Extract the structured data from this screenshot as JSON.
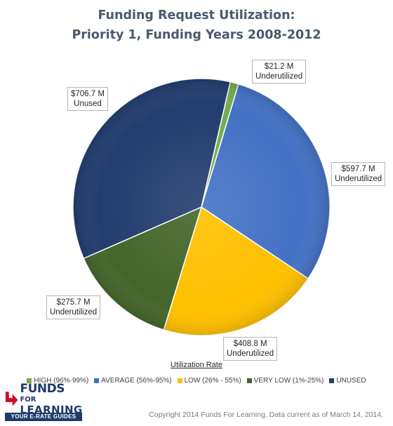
{
  "chart_data": {
    "type": "pie",
    "title_lines": [
      "Funding Request Utilization:",
      "Priority  1, Funding Years 2008-2012"
    ],
    "slices": [
      {
        "name": "HIGH (96%-99%)",
        "value": 21.2,
        "label_value": "$21.2 M",
        "label_text": "Underutilized",
        "color": "#72ac4d"
      },
      {
        "name": "AVERAGE (56%-95%)",
        "value": 597.7,
        "label_value": "$597.7 M",
        "label_text": "Underutilized",
        "color": "#4472c4"
      },
      {
        "name": "LOW (26% - 55%)",
        "value": 408.8,
        "label_value": "$408.8 M",
        "label_text": "Underutilized",
        "color": "#ffc000"
      },
      {
        "name": "VERY LOW (1%-25%)",
        "value": 275.7,
        "label_value": "$275.7 M",
        "label_text": "Underutilized",
        "color": "#44662a"
      },
      {
        "name": "UNUSED",
        "value": 706.7,
        "label_value": "$706.7 M",
        "label_text": "Unused",
        "color": "#223d6f"
      }
    ],
    "legend_title": "Utilization Rate",
    "legend_position": "bottom"
  },
  "footer": {
    "copyright": "Copyright 2014 Funds For Learning.  Data current as of March 14, 2014."
  },
  "logo": {
    "word_funds": "FUNDS",
    "word_for": "FOR",
    "word_learning": "LEARNING",
    "tagline": "YOUR E-RATE GUIDES"
  }
}
